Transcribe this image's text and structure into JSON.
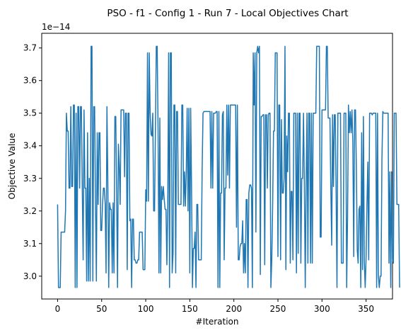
{
  "chart_data": {
    "type": "line",
    "title": "PSO - f1 - Config 1 - Run 7 - Local Objectives Chart",
    "xlabel": "#Iteration",
    "ylabel": "Objective Value",
    "y_scale_label": "1e−14",
    "xlim": [
      -18,
      380
    ],
    "ylim": [
      2.93,
      3.745
    ],
    "x_ticks": [
      0,
      50,
      100,
      150,
      200,
      250,
      300,
      350
    ],
    "x_tick_labels": [
      "0",
      "50",
      "100",
      "150",
      "200",
      "250",
      "300",
      "350"
    ],
    "y_ticks": [
      3.0,
      3.1,
      3.2,
      3.3,
      3.4,
      3.5,
      3.6,
      3.7
    ],
    "y_tick_labels": [
      "3.0",
      "3.1",
      "3.2",
      "3.3",
      "3.4",
      "3.5",
      "3.6",
      "3.7"
    ],
    "grid": false,
    "series": [
      {
        "color": "#1f77b4",
        "x_start": 0,
        "x_step": 1,
        "values": [
          3.22,
          2.965,
          2.965,
          2.965,
          3.135,
          3.135,
          3.135,
          3.135,
          3.135,
          3.2,
          3.5,
          3.445,
          3.445,
          3.27,
          3.27,
          3.52,
          3.275,
          3.275,
          3.525,
          3.525,
          2.965,
          3.5,
          2.965,
          3.52,
          3.52,
          3.27,
          3.52,
          3.52,
          3.27,
          3.05,
          3.51,
          3.27,
          3.27,
          2.985,
          3.44,
          2.985,
          3.3,
          2.985,
          3.705,
          3.705,
          2.985,
          3.52,
          3.52,
          3.23,
          2.985,
          3.44,
          3.22,
          3.44,
          3.44,
          3.14,
          3.14,
          3.22,
          3.27,
          3.27,
          3.22,
          3.01,
          3.52,
          3.29,
          2.965,
          3.225,
          3.205,
          3.205,
          3.01,
          3.225,
          3.01,
          3.49,
          3.49,
          3.255,
          2.965,
          3.405,
          3.335,
          3.22,
          3.51,
          3.51,
          3.51,
          3.51,
          3.305,
          3.5,
          3.5,
          3.02,
          3.5,
          3.5,
          3.17,
          3.175,
          2.965,
          3.175,
          3.175,
          3.05,
          3.05,
          3.04,
          3.04,
          3.05,
          3.05,
          3.135,
          3.135,
          3.135,
          3.135,
          3.02,
          3.02,
          3.02,
          3.265,
          3.23,
          3.685,
          3.23,
          3.685,
          3.5,
          3.435,
          3.43,
          3.5,
          3.2,
          3.2,
          3.45,
          3.705,
          3.705,
          3.45,
          3.01,
          3.485,
          3.01,
          3.275,
          3.235,
          3.275,
          3.235,
          3.205,
          3.205,
          3.035,
          3.22,
          3.685,
          2.965,
          3.685,
          3.685,
          3.01,
          3.07,
          3.525,
          3.525,
          3.01,
          3.505,
          3.505,
          3.22,
          3.22,
          3.22,
          3.22,
          3.525,
          3.525,
          3.215,
          3.32,
          3.215,
          3.32,
          3.515,
          3.2,
          3.515,
          3.01,
          3.515,
          3.27,
          2.965,
          3.085,
          3.085,
          3.135,
          2.965,
          3.22,
          3.22,
          3.05,
          3.05,
          3.05,
          3.05,
          3.325,
          3.5,
          3.505,
          3.505,
          3.505,
          3.505,
          3.505,
          3.505,
          3.505,
          3.505,
          3.27,
          3.505,
          3.27,
          3.5,
          3.5,
          3.5,
          3.505,
          3.505,
          2.965,
          3.505,
          2.965,
          3.255,
          3.255,
          3.495,
          3.505,
          3.05,
          3.27,
          3.27,
          3.525,
          3.31,
          3.525,
          3.27,
          3.525,
          3.525,
          3.525,
          3.525,
          3.525,
          3.525,
          3.525,
          3.15,
          3.525,
          3.05,
          3.05,
          3.09,
          3.1,
          3.1,
          3.17,
          3.01,
          3.1,
          3.01,
          3.235,
          3.235,
          2.965,
          3.255,
          3.28,
          3.28,
          3.27,
          2.965,
          3.685,
          3.525,
          3.685,
          3.135,
          3.685,
          3.705,
          3.685,
          3.705,
          3.005,
          3.49,
          3.49,
          3.495,
          3.495,
          3.035,
          3.495,
          3.495,
          3.27,
          3.495,
          3.5,
          3.5,
          2.965,
          3.05,
          3.215,
          3.445,
          3.445,
          3.685,
          3.685,
          3.685,
          3.06,
          3.525,
          3.525,
          3.05,
          3.48,
          3.255,
          3.255,
          3.3,
          3.705,
          3.02,
          3.43,
          3.32,
          3.5,
          3.5,
          3.04,
          3.26,
          3.26,
          3.05,
          3.5,
          3.5,
          3.5,
          3.01,
          3.5,
          3.07,
          3.5,
          3.5,
          3.04,
          3.3,
          3.3,
          3.5,
          3.285,
          2.965,
          3.285,
          3.5,
          3.04,
          3.5,
          3.5,
          3.04,
          3.5,
          3.04,
          3.5,
          3.5,
          3.5,
          3.5,
          3.705,
          3.705,
          3.705,
          3.705,
          3.12,
          3.12,
          3.51,
          3.51,
          3.51,
          3.51,
          3.51,
          3.705,
          3.705,
          3.485,
          3.485,
          3.485,
          3.275,
          3.095,
          3.495,
          3.275,
          3.495,
          3.495,
          3.27,
          2.965,
          3.5,
          3.5,
          3.5,
          3.5,
          3.04,
          3.04,
          3.04,
          3.5,
          3.5,
          3.5,
          2.965,
          3.18,
          3.525,
          3.44,
          3.505,
          3.44,
          3.51,
          3.41,
          3.06,
          3.51,
          3.51,
          3.33,
          3.08,
          3.04,
          3.205,
          3.215,
          2.965,
          3.44,
          3.02,
          3.49,
          3.045,
          2.965,
          3.055,
          3.22,
          3.35,
          3.05,
          3.5,
          3.5,
          3.5,
          3.495,
          3.5,
          3.5,
          3.5,
          3.5,
          2.965,
          3.5,
          3.0,
          2.965,
          3.0,
          3.0,
          3.36,
          3.505,
          3.5,
          3.5,
          3.5,
          3.5,
          3.5,
          3.5,
          3.04,
          3.32,
          2.965,
          3.32,
          3.05,
          3.04,
          3.5,
          3.5,
          3.5,
          3.22,
          3.22,
          3.22,
          2.965
        ]
      }
    ]
  }
}
